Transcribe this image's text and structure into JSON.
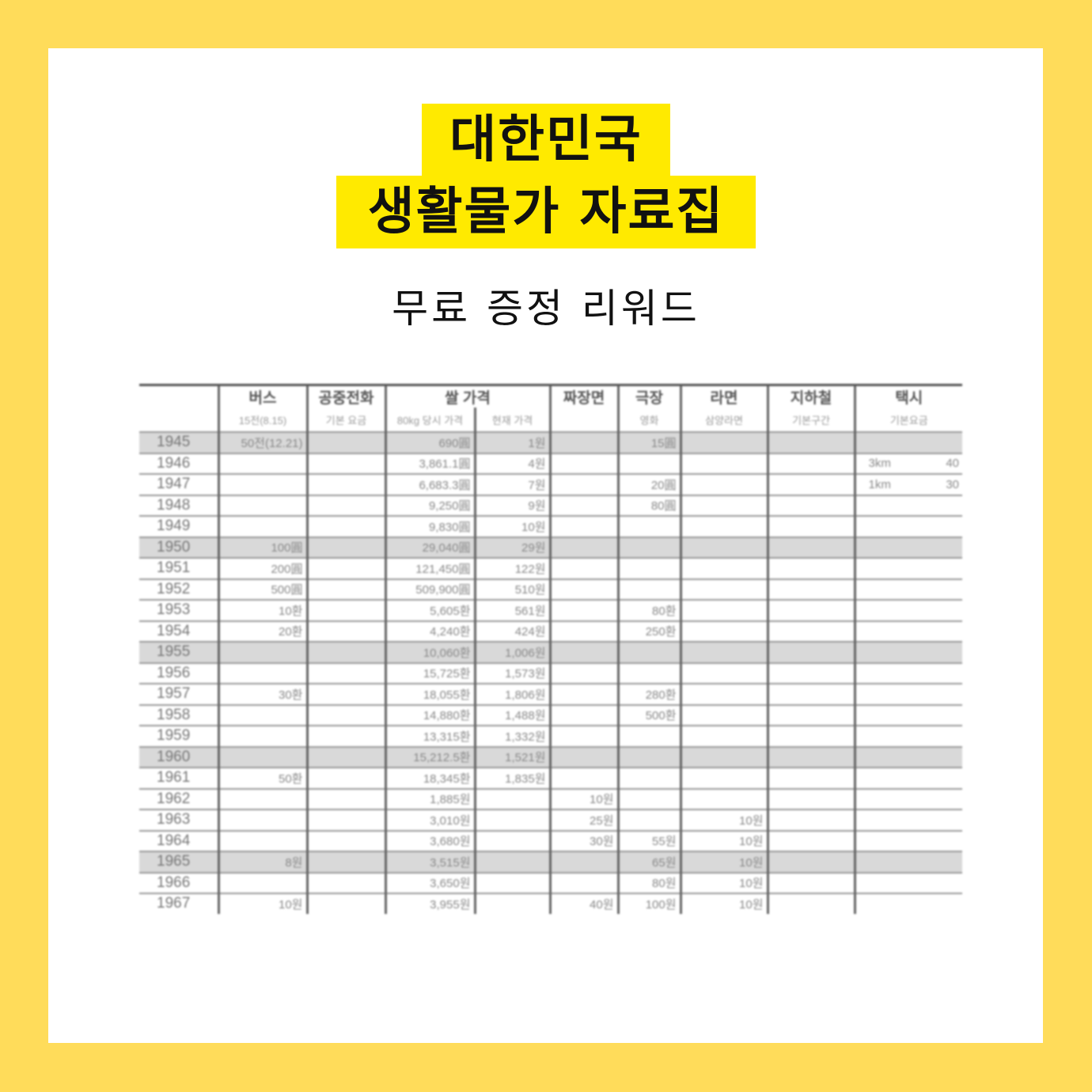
{
  "colors": {
    "border": "#FFDC5A",
    "highlight": "#FFEA00",
    "card": "#ffffff"
  },
  "title": {
    "line1": "대한민국",
    "line2": "생활물가 자료집"
  },
  "subtitle": "무료 증정 리워드",
  "table": {
    "headers": [
      "버스",
      "공중전화",
      "쌀 가격",
      "짜장면",
      "극장",
      "라면",
      "지하철",
      "택시"
    ],
    "subheaders": [
      "15전(8.15)",
      "기본 요금",
      "80kg 당시 가격",
      "현재 가격",
      "",
      "영화",
      "삼양라면",
      "기본구간",
      "기본요금"
    ],
    "rows": [
      {
        "year": "1945",
        "shaded": true,
        "cells": [
          "50전(12.21)",
          "",
          "690圓",
          "1원",
          "",
          "15圓",
          "",
          "",
          ""
        ]
      },
      {
        "year": "1946",
        "cells": [
          "",
          "",
          "3,861.1圓",
          "4원",
          "",
          "",
          "",
          "",
          [
            "3km",
            "40"
          ]
        ]
      },
      {
        "year": "1947",
        "cells": [
          "",
          "",
          "6,683.3圓",
          "7원",
          "",
          "20圓",
          "",
          "",
          [
            "1km",
            "30"
          ]
        ]
      },
      {
        "year": "1948",
        "cells": [
          "",
          "",
          "9,250圓",
          "9원",
          "",
          "80圓",
          "",
          "",
          ""
        ]
      },
      {
        "year": "1949",
        "cells": [
          "",
          "",
          "9,830圓",
          "10원",
          "",
          "",
          "",
          "",
          ""
        ]
      },
      {
        "year": "1950",
        "shaded": true,
        "cells": [
          "100圓",
          "",
          "29,040圓",
          "29원",
          "",
          "",
          "",
          "",
          ""
        ]
      },
      {
        "year": "1951",
        "cells": [
          "200圓",
          "",
          "121,450圓",
          "122원",
          "",
          "",
          "",
          "",
          ""
        ]
      },
      {
        "year": "1952",
        "cells": [
          "500圓",
          "",
          "509,900圓",
          "510원",
          "",
          "",
          "",
          "",
          ""
        ]
      },
      {
        "year": "1953",
        "cells": [
          "10환",
          "",
          "5,605환",
          "561원",
          "",
          "80환",
          "",
          "",
          ""
        ]
      },
      {
        "year": "1954",
        "cells": [
          "20환",
          "",
          "4,240환",
          "424원",
          "",
          "250환",
          "",
          "",
          ""
        ]
      },
      {
        "year": "1955",
        "shaded": true,
        "cells": [
          "",
          "",
          "10,060환",
          "1,006원",
          "",
          "",
          "",
          "",
          ""
        ]
      },
      {
        "year": "1956",
        "cells": [
          "",
          "",
          "15,725환",
          "1,573원",
          "",
          "",
          "",
          "",
          ""
        ]
      },
      {
        "year": "1957",
        "cells": [
          "30환",
          "",
          "18,055환",
          "1,806원",
          "",
          "280환",
          "",
          "",
          ""
        ]
      },
      {
        "year": "1958",
        "cells": [
          "",
          "",
          "14,880환",
          "1,488원",
          "",
          "500환",
          "",
          "",
          ""
        ]
      },
      {
        "year": "1959",
        "cells": [
          "",
          "",
          "13,315환",
          "1,332원",
          "",
          "",
          "",
          "",
          ""
        ]
      },
      {
        "year": "1960",
        "shaded": true,
        "cells": [
          "",
          "",
          "15,212.5환",
          "1,521원",
          "",
          "",
          "",
          "",
          ""
        ]
      },
      {
        "year": "1961",
        "cells": [
          "50환",
          "",
          "18,345환",
          "1,835원",
          "",
          "",
          "",
          "",
          ""
        ]
      },
      {
        "year": "1962",
        "cells": [
          "",
          "",
          "1,885원",
          "",
          "10원",
          "",
          "",
          "",
          ""
        ]
      },
      {
        "year": "1963",
        "cells": [
          "",
          "",
          "3,010원",
          "",
          "25원",
          "",
          "10원",
          "",
          ""
        ]
      },
      {
        "year": "1964",
        "cells": [
          "",
          "",
          "3,680원",
          "",
          "30원",
          "55원",
          "10원",
          "",
          ""
        ]
      },
      {
        "year": "1965",
        "shaded": true,
        "cells": [
          "8원",
          "",
          "3,515원",
          "",
          "",
          "65원",
          "10원",
          "",
          ""
        ]
      },
      {
        "year": "1966",
        "cells": [
          "",
          "",
          "3,650원",
          "",
          "",
          "80원",
          "10원",
          "",
          ""
        ]
      },
      {
        "year": "1967",
        "cells": [
          "10원",
          "",
          "3,955원",
          "",
          "40원",
          "100원",
          "10원",
          "",
          ""
        ]
      }
    ]
  }
}
